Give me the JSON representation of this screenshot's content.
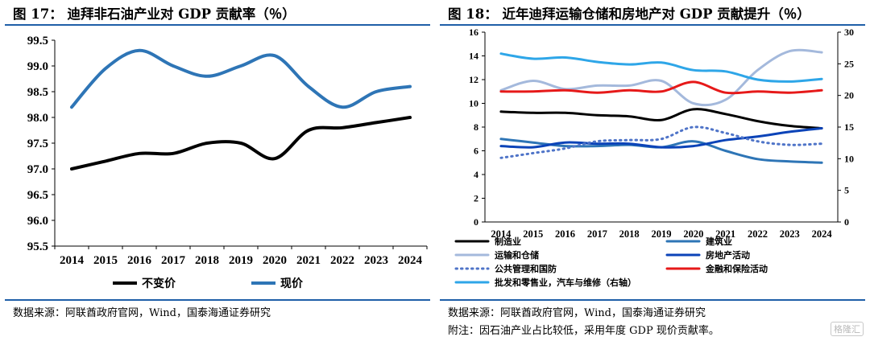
{
  "left": {
    "title": "图 17：  迪拜非石油产业对 GDP 贡献率（％）",
    "source": "数据来源：阿联酋政府官网，Wind，国泰海通证券研究",
    "chart_data": {
      "type": "line",
      "categories": [
        "2014",
        "2015",
        "2016",
        "2017",
        "2018",
        "2019",
        "2020",
        "2021",
        "2022",
        "2023",
        "2024"
      ],
      "ylim": [
        95.5,
        99.5
      ],
      "yticks": [
        "95.5",
        "96.0",
        "96.5",
        "97.0",
        "97.5",
        "98.0",
        "98.5",
        "99.0",
        "99.5"
      ],
      "legend_position": "bottom",
      "series": [
        {
          "name": "不变价",
          "color": "#000000",
          "values": [
            97.0,
            97.15,
            97.3,
            97.3,
            97.5,
            97.5,
            97.2,
            97.75,
            97.8,
            97.9,
            98.0
          ]
        },
        {
          "name": "现价",
          "color": "#2e75b6",
          "values": [
            98.2,
            98.95,
            99.3,
            99.0,
            98.8,
            99.0,
            99.2,
            98.6,
            98.2,
            98.5,
            98.6
          ]
        }
      ]
    }
  },
  "right": {
    "title": "图 18：  近年迪拜运输仓储和房地产对 GDP 贡献提升（％）",
    "source": "数据来源：阿联酋政府官网，Wind，国泰海通证券研究",
    "note": "附注：因石油产业占比较低，采用年度 GDP 现价贡献率。",
    "chart_data": {
      "type": "line",
      "categories": [
        "2014",
        "2015",
        "2016",
        "2017",
        "2018",
        "2019",
        "2020",
        "2021",
        "2022",
        "2023",
        "2024"
      ],
      "ylim_left": [
        0,
        16
      ],
      "yticks_left": [
        "0",
        "2",
        "4",
        "6",
        "8",
        "10",
        "12",
        "14",
        "16"
      ],
      "ylim_right": [
        0,
        30
      ],
      "yticks_right": [
        "0",
        "5",
        "10",
        "15",
        "20",
        "25",
        "30"
      ],
      "legend_position": "bottom",
      "series": [
        {
          "name": "制造业",
          "color": "#000000",
          "dash": false,
          "axis": "left",
          "values": [
            9.3,
            9.2,
            9.2,
            9.0,
            8.9,
            8.6,
            9.5,
            9.1,
            8.5,
            8.1,
            7.9
          ]
        },
        {
          "name": "建筑业",
          "color": "#2e75b6",
          "dash": false,
          "axis": "left",
          "values": [
            7.0,
            6.7,
            6.4,
            6.4,
            6.5,
            6.3,
            6.8,
            6.0,
            5.3,
            5.1,
            5.0
          ]
        },
        {
          "name": "运输和仓储",
          "color": "#a4b9dc",
          "dash": false,
          "axis": "left",
          "values": [
            11.1,
            11.9,
            11.2,
            11.5,
            11.5,
            11.9,
            10.0,
            10.3,
            12.8,
            14.4,
            14.3
          ]
        },
        {
          "name": "房地产活动",
          "color": "#0b43b8",
          "dash": false,
          "axis": "left",
          "values": [
            6.4,
            6.3,
            6.7,
            6.6,
            6.6,
            6.3,
            6.4,
            6.9,
            7.2,
            7.6,
            7.9
          ]
        },
        {
          "name": "公共管理和国防",
          "color": "#4f74c8",
          "dash": true,
          "axis": "left",
          "values": [
            5.4,
            5.8,
            6.2,
            6.8,
            6.9,
            7.0,
            8.0,
            7.5,
            6.8,
            6.5,
            6.6
          ]
        },
        {
          "name": "金融和保险活动",
          "color": "#e61919",
          "dash": false,
          "axis": "left",
          "values": [
            11.0,
            11.0,
            11.1,
            10.9,
            11.1,
            11.0,
            11.8,
            10.9,
            11.0,
            10.9,
            11.1
          ]
        },
        {
          "name": "批发和零售业，汽车与维修（右轴）",
          "color": "#2ea6e8",
          "dash": false,
          "axis": "right",
          "values": [
            26.6,
            25.8,
            26.0,
            25.3,
            24.9,
            25.2,
            24.0,
            23.8,
            22.5,
            22.2,
            22.6
          ]
        }
      ]
    }
  },
  "watermark": "格隆汇"
}
